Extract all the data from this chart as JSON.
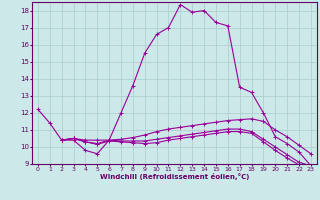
{
  "bg_color": "#cce8e8",
  "line_color": "#990099",
  "grid_color": "#aacccc",
  "xlabel": "Windchill (Refroidissement éolien,°C)",
  "xlim": [
    -0.5,
    23.5
  ],
  "ylim": [
    9,
    18.5
  ],
  "xticks": [
    0,
    1,
    2,
    3,
    4,
    5,
    6,
    7,
    8,
    9,
    10,
    11,
    12,
    13,
    14,
    15,
    16,
    17,
    18,
    19,
    20,
    21,
    22,
    23
  ],
  "yticks": [
    9,
    10,
    11,
    12,
    13,
    14,
    15,
    16,
    17,
    18
  ],
  "curve1_x": [
    0,
    1,
    2,
    3,
    4,
    5,
    6,
    7,
    8,
    9,
    10,
    11,
    12,
    13,
    14,
    15,
    16,
    17,
    18,
    19,
    20,
    21,
    22,
    23
  ],
  "curve1_y": [
    12.2,
    11.4,
    10.4,
    10.4,
    9.8,
    9.6,
    10.4,
    12.0,
    13.6,
    15.5,
    16.6,
    17.0,
    18.35,
    17.9,
    18.0,
    17.3,
    17.1,
    13.5,
    13.2,
    12.0,
    10.6,
    10.2,
    9.7,
    8.9
  ],
  "curve2_x": [
    2,
    3,
    4,
    5,
    6,
    7,
    8,
    9,
    10,
    11,
    12,
    13,
    14,
    15,
    16,
    17,
    18,
    19,
    20,
    21,
    22,
    23
  ],
  "curve2_y": [
    10.4,
    10.5,
    10.4,
    10.4,
    10.4,
    10.45,
    10.55,
    10.7,
    10.9,
    11.05,
    11.15,
    11.25,
    11.35,
    11.45,
    11.55,
    11.6,
    11.65,
    11.5,
    11.0,
    10.6,
    10.1,
    9.6
  ],
  "curve3_x": [
    2,
    3,
    4,
    5,
    6,
    7,
    8,
    9,
    10,
    11,
    12,
    13,
    14,
    15,
    16,
    17,
    18,
    19,
    20,
    21,
    22,
    23
  ],
  "curve3_y": [
    10.4,
    10.5,
    10.3,
    10.2,
    10.4,
    10.35,
    10.35,
    10.35,
    10.45,
    10.55,
    10.65,
    10.75,
    10.85,
    10.95,
    11.05,
    11.05,
    10.9,
    10.45,
    10.0,
    9.55,
    9.1,
    8.9
  ],
  "curve4_x": [
    2,
    3,
    4,
    5,
    6,
    7,
    8,
    9,
    10,
    11,
    12,
    13,
    14,
    15,
    16,
    17,
    18,
    19,
    20,
    21,
    22,
    23
  ],
  "curve4_y": [
    10.4,
    10.5,
    10.3,
    10.15,
    10.35,
    10.3,
    10.25,
    10.2,
    10.25,
    10.4,
    10.5,
    10.6,
    10.7,
    10.8,
    10.9,
    10.9,
    10.8,
    10.3,
    9.8,
    9.35,
    8.95,
    8.85
  ]
}
